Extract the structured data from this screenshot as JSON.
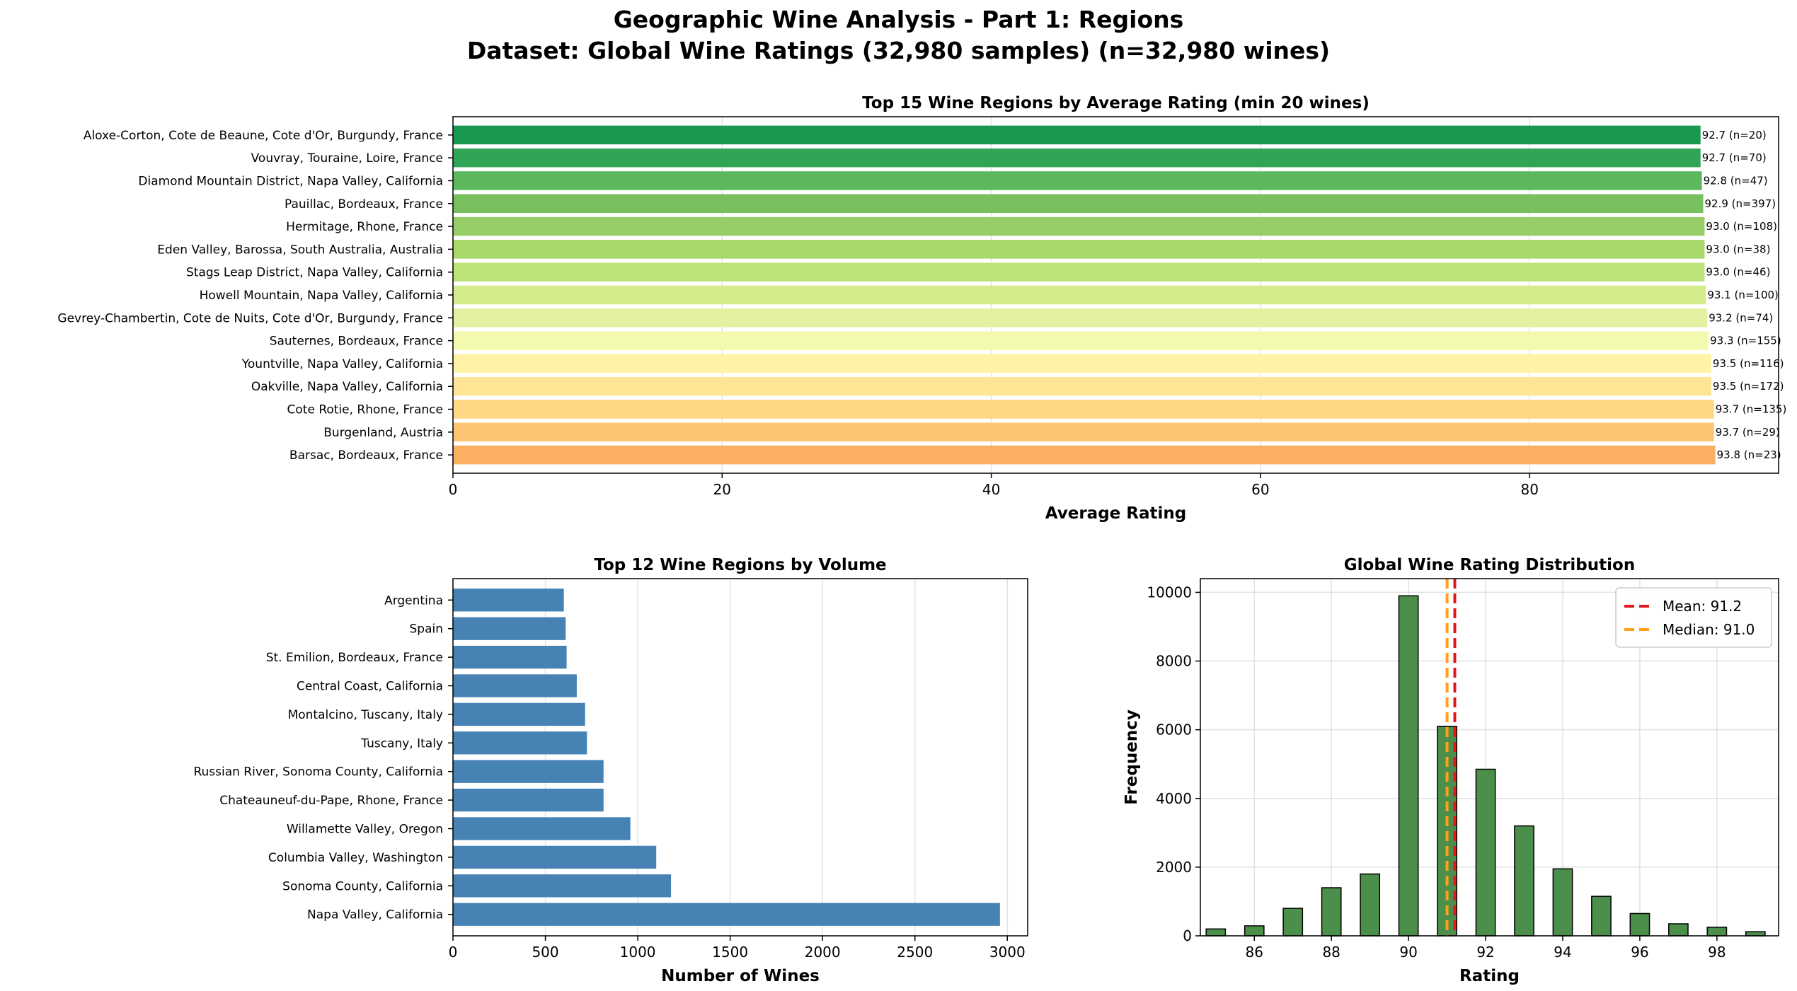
{
  "figure": {
    "title_line1": "Geographic Wine Analysis - Part 1: Regions",
    "title_line2": "Dataset: Global Wine Ratings (32,980 samples) (n=32,980 wines)"
  },
  "chart_data": [
    {
      "type": "bar",
      "orientation": "horizontal",
      "title": "Top 15 Wine Regions by Average Rating (min 20 wines)",
      "xlabel": "Average Rating",
      "ylabel": "",
      "xlim": [
        0,
        98.5
      ],
      "xticks": [
        0,
        20,
        40,
        60,
        80
      ],
      "grid": true,
      "categories": [
        "Aloxe-Corton, Cote de Beaune, Cote d'Or, Burgundy, France",
        "Vouvray, Touraine, Loire, France",
        "Diamond Mountain District, Napa Valley, California",
        "Pauillac, Bordeaux, France",
        "Hermitage, Rhone, France",
        "Eden Valley, Barossa, South Australia, Australia",
        "Stags Leap District, Napa Valley, California",
        "Howell Mountain, Napa Valley, California",
        "Gevrey-Chambertin, Cote de Nuits, Cote d'Or, Burgundy, France",
        "Sauternes, Bordeaux, France",
        "Yountville, Napa Valley, California",
        "Oakville, Napa Valley, California",
        "Cote Rotie, Rhone, France",
        "Burgenland, Austria",
        "Barsac, Bordeaux, France"
      ],
      "values": [
        92.7,
        92.7,
        92.8,
        92.9,
        93.0,
        93.0,
        93.0,
        93.1,
        93.2,
        93.3,
        93.5,
        93.5,
        93.7,
        93.7,
        93.8
      ],
      "labels": [
        "92.7 (n=20)",
        "92.7 (n=70)",
        "92.8 (n=47)",
        "92.9 (n=397)",
        "93.0 (n=108)",
        "93.0 (n=38)",
        "93.0 (n=46)",
        "93.1 (n=100)",
        "93.2 (n=74)",
        "93.3 (n=155)",
        "93.5 (n=116)",
        "93.5 (n=172)",
        "93.7 (n=135)",
        "93.7 (n=29)",
        "93.8 (n=23)"
      ],
      "colors": [
        "#1a9850",
        "#32a456",
        "#5cb85c",
        "#78c05e",
        "#97cd67",
        "#a9d86b",
        "#bde27a",
        "#d4ec8c",
        "#e3f1a0",
        "#f4f9b0",
        "#fff3a8",
        "#fee595",
        "#fed883",
        "#fdc473",
        "#fab060"
      ]
    },
    {
      "type": "bar",
      "orientation": "horizontal",
      "title": "Top 12 Wine Regions by Volume",
      "xlabel": "Number of Wines",
      "ylabel": "",
      "xlim": [
        0,
        3110
      ],
      "xticks": [
        0,
        500,
        1000,
        1500,
        2000,
        2500,
        3000
      ],
      "grid": true,
      "categories": [
        "Argentina",
        "Spain",
        "St. Emilion, Bordeaux, France",
        "Central Coast, California",
        "Montalcino, Tuscany, Italy",
        "Tuscany, Italy",
        "Russian River, Sonoma County, California",
        "Chateauneuf-du-Pape, Rhone, France",
        "Willamette Valley, Oregon",
        "Columbia Valley, Washington",
        "Sonoma County, California",
        "Napa Valley, California"
      ],
      "values": [
        600,
        610,
        615,
        670,
        715,
        725,
        815,
        815,
        960,
        1100,
        1180,
        2960
      ],
      "color": "#4682b4"
    },
    {
      "type": "bar",
      "subtype": "histogram",
      "title": "Global Wine Rating Distribution",
      "xlabel": "Rating",
      "ylabel": "Frequency",
      "xlim": [
        84.6,
        99.6
      ],
      "ylim": [
        0,
        10400
      ],
      "xticks": [
        86,
        88,
        90,
        92,
        94,
        96,
        98
      ],
      "yticks": [
        0,
        2000,
        4000,
        6000,
        8000,
        10000
      ],
      "grid": true,
      "x": [
        85,
        86,
        87,
        88,
        89,
        90,
        91,
        92,
        93,
        94,
        95,
        96,
        97,
        98,
        99
      ],
      "values": [
        200,
        290,
        800,
        1400,
        1800,
        9900,
        6100,
        4850,
        3200,
        1950,
        1150,
        650,
        350,
        250,
        120
      ],
      "bar_color": "#4b8f4b",
      "mean": 91.2,
      "median": 91.0,
      "legend": [
        "Mean: 91.2",
        "Median: 91.0"
      ],
      "legend_position": "upper right",
      "mean_color": "#e31a1c",
      "median_color": "#ff9f1a"
    }
  ]
}
